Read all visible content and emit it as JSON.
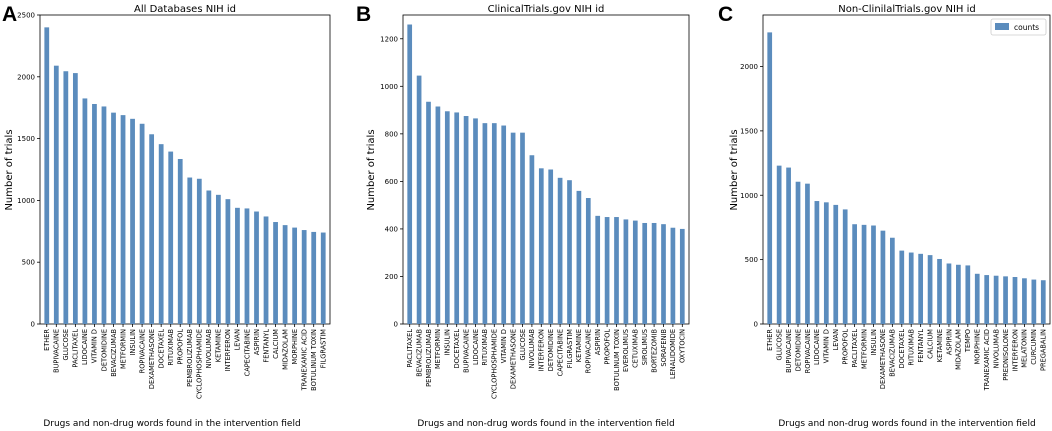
{
  "colors": {
    "bar": "#5b8cbd",
    "axis": "#000000",
    "legend_border": "#cccccc"
  },
  "chart_data": [
    {
      "type": "bar",
      "panel_label": "A",
      "title": "All Databases NIH id",
      "xlabel": "Drugs and non-drug words found in the intervention field",
      "ylabel": "Number of trials",
      "ylim": [
        0,
        2500
      ],
      "yticks": [
        0,
        500,
        1000,
        1500,
        2000,
        2500
      ],
      "categories": [
        "ETHER",
        "BUPIVACAINE",
        "GLUCOSE",
        "PACLITAXEL",
        "LIDOCAINE",
        "VITAMIN D",
        "DETOMIDINE",
        "BEVACIZUMAB",
        "METFORMIN",
        "INSULIN",
        "ROPIVACAINE",
        "DEXAMETHASONE",
        "DOCETAXEL",
        "RITUXIMAB",
        "PROPOFOL",
        "PEMBROLIZUMAB",
        "CYCLOPHOSPHAMIDE",
        "NIVOLUMAB",
        "KETAMINE",
        "INTERFERON",
        "LEVAN",
        "CAPECITABINE",
        "ASPIRIN",
        "FENTANYL",
        "CALCIUM",
        "MIDAZOLAM",
        "MORPHINE",
        "TRANEXAMIC ACID",
        "BOTULINUM TOXIN",
        "FILGRASTIM"
      ],
      "values": [
        2400,
        2090,
        2045,
        2030,
        1825,
        1780,
        1760,
        1710,
        1690,
        1660,
        1620,
        1535,
        1455,
        1395,
        1335,
        1185,
        1175,
        1080,
        1045,
        1010,
        940,
        935,
        910,
        870,
        825,
        800,
        780,
        760,
        745,
        740
      ]
    },
    {
      "type": "bar",
      "panel_label": "B",
      "title": "ClinicalTrials.gov NIH id",
      "xlabel": "Drugs and non-drug words found in the intervention field",
      "ylabel": "Number of trials",
      "ylim": [
        0,
        1300
      ],
      "yticks": [
        0,
        200,
        400,
        600,
        800,
        1000,
        1200
      ],
      "categories": [
        "PACLITAXEL",
        "BEVACIZUMAB",
        "PEMBROLIZUMAB",
        "METFORMIN",
        "INSULIN",
        "DOCETAXEL",
        "BUPIVACAINE",
        "LIDOCAINE",
        "RITUXIMAB",
        "CYCLOPHOSPHAMIDE",
        "VITAMIN D",
        "DEXAMETHASONE",
        "GLUCOSE",
        "NIVOLUMAB",
        "INTERFERON",
        "DETOMIDINE",
        "CAPECITABINE",
        "FILGRASTIM",
        "KETAMINE",
        "ROPIVACAINE",
        "ASPIRIN",
        "PROPOFOL",
        "BOTULINUM TOXIN",
        "EVEROLIMUS",
        "CETUXIMAB",
        "SIROLIMUS",
        "BORTEZOMIB",
        "SORAFENIB",
        "LENALIDOMIDE",
        "OXYTOCIN"
      ],
      "values": [
        1260,
        1045,
        935,
        915,
        895,
        890,
        875,
        865,
        845,
        845,
        835,
        805,
        805,
        710,
        655,
        650,
        615,
        605,
        560,
        530,
        455,
        450,
        450,
        440,
        435,
        425,
        425,
        420,
        405,
        400
      ]
    },
    {
      "type": "bar",
      "panel_label": "C",
      "title": "Non-ClinilalTrials.gov NIH id",
      "xlabel": "Drugs and non-drug words found in the intervention field",
      "ylabel": "Number of trials",
      "ylim": [
        0,
        2400
      ],
      "yticks": [
        0,
        500,
        1000,
        1500,
        2000
      ],
      "legend": {
        "label": "counts",
        "position": "top-right"
      },
      "categories": [
        "ETHER",
        "GLUCOSE",
        "BUPIVACAINE",
        "DETOMIDINE",
        "ROPIVACAINE",
        "LIDOCAINE",
        "VITAMIN D",
        "LEVAN",
        "PROPOFOL",
        "PACLITAXEL",
        "METFORMIN",
        "INSULIN",
        "DEXAMETHASONE",
        "BEVACIZUMAB",
        "DOCETAXEL",
        "RITUXIMAB",
        "FENTANYL",
        "CALCIUM",
        "KETAMINE",
        "ASPIRIN",
        "MIDAZOLAM",
        "TEMPO",
        "MORPHINE",
        "TRANEXAMIC ACID",
        "NIVOLUMAB",
        "PREDNISOLONE",
        "INTERFERON",
        "MELATONIN",
        "CURCUMIN",
        "PREGABALIN"
      ],
      "values": [
        2265,
        1230,
        1215,
        1105,
        1090,
        955,
        945,
        925,
        890,
        775,
        770,
        765,
        725,
        670,
        570,
        555,
        545,
        535,
        505,
        470,
        460,
        455,
        390,
        380,
        375,
        370,
        365,
        355,
        345,
        340
      ]
    }
  ]
}
